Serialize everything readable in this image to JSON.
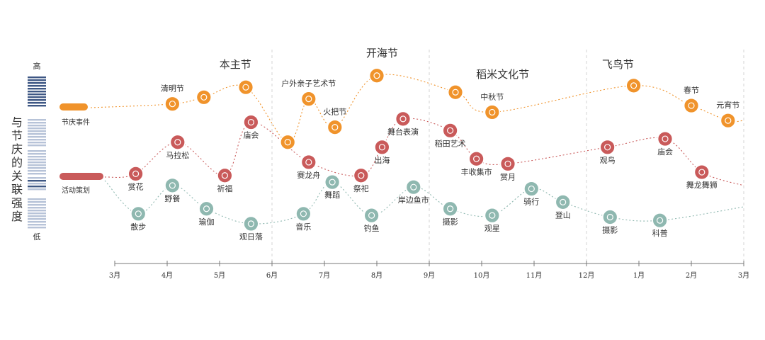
{
  "y_axis": {
    "title_chars": [
      "与",
      "节",
      "庆",
      "的",
      "关",
      "联",
      "强",
      "度"
    ],
    "high_label": "高",
    "low_label": "低"
  },
  "legend": [
    {
      "label": "节庆事件",
      "color": "#f0932b"
    },
    {
      "label": "活动策划",
      "color": "#c95a5a"
    }
  ],
  "colors": {
    "festival": "#f0932b",
    "activity": "#c95a5a",
    "baseline": "#8fb8b0",
    "axis": "#7a7a7a",
    "strip_dark": "#3e5784",
    "strip_light": "#b7c3d8"
  },
  "chart_data": {
    "type": "line",
    "x_ticks": [
      "3月",
      "4月",
      "5月",
      "6月",
      "7月",
      "8月",
      "9月",
      "10月",
      "11月",
      "12月",
      "1月",
      "2月",
      "3月"
    ],
    "y_range": [
      0,
      1
    ],
    "y_scale_note": "qualitative 低 to 高",
    "section_labels": [
      {
        "label": "本主节",
        "x": 2.3
      },
      {
        "label": "开海节",
        "x": 5.1
      },
      {
        "label": "稻米文化节",
        "x": 7.4
      },
      {
        "label": "飞鸟节",
        "x": 9.6
      }
    ],
    "dividers": [
      3,
      6,
      9,
      12
    ],
    "series": [
      {
        "name": "节庆事件",
        "color": "#f0932b",
        "points": [
          {
            "x": 1.1,
            "y": 0.78,
            "label": "清明节",
            "icon": "wreath-icon"
          },
          {
            "x": 1.7,
            "y": 0.82,
            "label": "",
            "icon": "kite-icon"
          },
          {
            "x": 2.5,
            "y": 0.88,
            "label": "",
            "icon": "lantern-icon"
          },
          {
            "x": 3.3,
            "y": 0.55,
            "label": "",
            "icon": "zongzi-icon"
          },
          {
            "x": 3.7,
            "y": 0.81,
            "label": "户外亲子艺术节",
            "icon": "family-icon"
          },
          {
            "x": 4.2,
            "y": 0.64,
            "label": "火把节",
            "icon": "torch-icon"
          },
          {
            "x": 5.0,
            "y": 0.95,
            "label": "",
            "icon": "ship-icon"
          },
          {
            "x": 6.5,
            "y": 0.85,
            "label": "",
            "icon": "rice-icon"
          },
          {
            "x": 7.2,
            "y": 0.73,
            "label": "中秋节",
            "icon": "mooncake-icon"
          },
          {
            "x": 9.9,
            "y": 0.89,
            "label": "",
            "icon": "bird-icon"
          },
          {
            "x": 11.0,
            "y": 0.77,
            "label": "春节",
            "icon": "firecracker-icon"
          },
          {
            "x": 11.7,
            "y": 0.68,
            "label": "元宵节",
            "icon": "lantern-icon"
          }
        ]
      },
      {
        "name": "活动策划",
        "color": "#c95a5a",
        "points": [
          {
            "x": 0.4,
            "y": 0.36,
            "label": "赏花",
            "icon": "flower-icon"
          },
          {
            "x": 1.2,
            "y": 0.55,
            "label": "马拉松",
            "icon": "runner-icon"
          },
          {
            "x": 2.1,
            "y": 0.35,
            "label": "祈福",
            "icon": "incense-icon"
          },
          {
            "x": 2.6,
            "y": 0.67,
            "label": "庙会",
            "icon": "temple-icon"
          },
          {
            "x": 3.7,
            "y": 0.43,
            "label": "赛龙舟",
            "icon": "dragon-boat-icon"
          },
          {
            "x": 4.7,
            "y": 0.35,
            "label": "祭祀",
            "icon": "ritual-icon"
          },
          {
            "x": 5.1,
            "y": 0.52,
            "label": "出海",
            "icon": "boat-icon"
          },
          {
            "x": 5.5,
            "y": 0.69,
            "label": "舞台表演",
            "icon": "stage-icon"
          },
          {
            "x": 6.4,
            "y": 0.62,
            "label": "稻田艺术",
            "icon": "paddy-icon"
          },
          {
            "x": 6.9,
            "y": 0.45,
            "label": "丰收集市",
            "icon": "market-icon"
          },
          {
            "x": 7.5,
            "y": 0.42,
            "label": "赏月",
            "icon": "moon-icon"
          },
          {
            "x": 9.4,
            "y": 0.52,
            "label": "观鸟",
            "icon": "bird-icon"
          },
          {
            "x": 10.5,
            "y": 0.57,
            "label": "庙会",
            "icon": "temple-icon"
          },
          {
            "x": 11.2,
            "y": 0.37,
            "label": "舞龙舞狮",
            "icon": "lion-dance-icon"
          }
        ]
      },
      {
        "name": "",
        "color": "#8fb8b0",
        "points": [
          {
            "x": 0.45,
            "y": 0.12,
            "label": "散步",
            "icon": "walk-icon"
          },
          {
            "x": 1.1,
            "y": 0.29,
            "label": "野餐",
            "icon": "picnic-icon"
          },
          {
            "x": 1.75,
            "y": 0.15,
            "label": "瑜伽",
            "icon": "yoga-icon"
          },
          {
            "x": 2.6,
            "y": 0.06,
            "label": "观日落",
            "icon": "sunset-icon"
          },
          {
            "x": 3.6,
            "y": 0.12,
            "label": "音乐",
            "icon": "music-icon"
          },
          {
            "x": 4.15,
            "y": 0.31,
            "label": "舞蹈",
            "icon": "dance-icon"
          },
          {
            "x": 4.9,
            "y": 0.11,
            "label": "钓鱼",
            "icon": "fishing-icon"
          },
          {
            "x": 5.7,
            "y": 0.28,
            "label": "岸边鱼市",
            "icon": "fish-market-icon"
          },
          {
            "x": 6.4,
            "y": 0.15,
            "label": "摄影",
            "icon": "camera-icon"
          },
          {
            "x": 7.2,
            "y": 0.11,
            "label": "观星",
            "icon": "telescope-icon"
          },
          {
            "x": 7.95,
            "y": 0.27,
            "label": "骑行",
            "icon": "bike-icon"
          },
          {
            "x": 8.55,
            "y": 0.19,
            "label": "登山",
            "icon": "hiking-icon"
          },
          {
            "x": 9.45,
            "y": 0.1,
            "label": "摄影",
            "icon": "camera-icon"
          },
          {
            "x": 10.4,
            "y": 0.08,
            "label": "科普",
            "icon": "education-icon"
          }
        ]
      }
    ]
  }
}
